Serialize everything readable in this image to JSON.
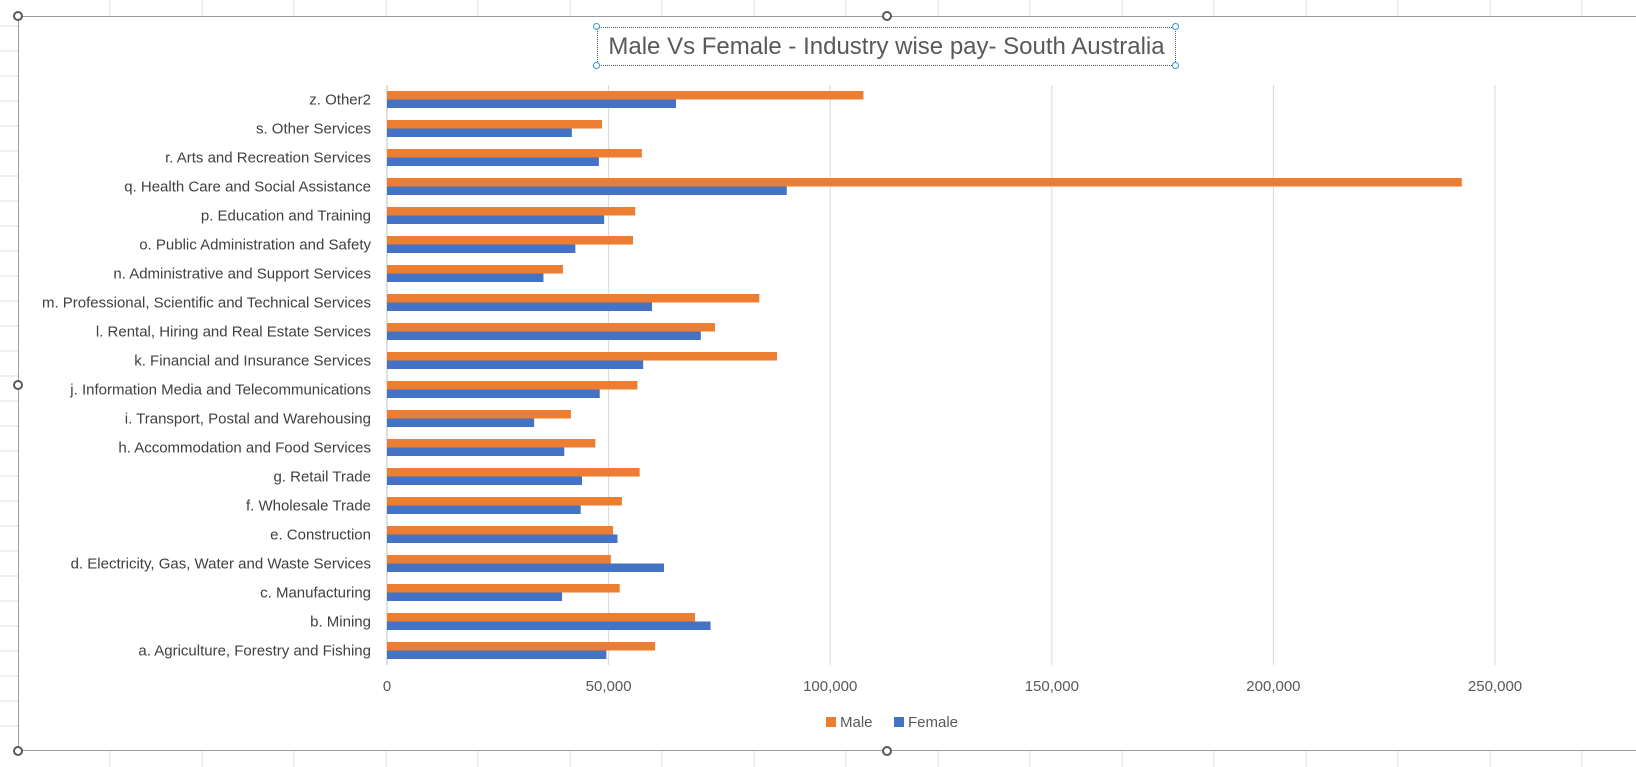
{
  "colors": {
    "male": "#ED7D31",
    "female": "#4472C4",
    "gridline": "#D9D9D9",
    "label": "#404040",
    "tick_label": "#595959"
  },
  "chart_data": {
    "type": "bar",
    "orientation": "horizontal",
    "title": "Male Vs Female - Industry wise pay-  South Australia",
    "xlabel": "",
    "ylabel": "",
    "categories": [
      "a. Agriculture, Forestry and Fishing",
      "b. Mining",
      "c. Manufacturing",
      "d. Electricity, Gas, Water and Waste Services",
      "e. Construction",
      "f. Wholesale Trade",
      "g. Retail Trade",
      "h. Accommodation and Food Services",
      "i. Transport, Postal and Warehousing",
      "j. Information Media and Telecommunications",
      "k. Financial and Insurance Services",
      "l. Rental, Hiring and Real Estate Services",
      "m. Professional, Scientific and Technical Services",
      "n. Administrative and Support Services",
      "o. Public Administration and Safety",
      "p. Education and Training",
      "q. Health Care and Social Assistance",
      "r. Arts and Recreation Services",
      "s. Other Services",
      "z. Other2"
    ],
    "series": [
      {
        "name": "Male",
        "color": "#ED7D31",
        "values": [
          60500,
          69500,
          52500,
          50500,
          51000,
          53000,
          57000,
          47000,
          41500,
          56500,
          88000,
          74000,
          84000,
          39700,
          55500,
          56000,
          242500,
          57500,
          48500,
          107500
        ]
      },
      {
        "name": "Female",
        "color": "#4472C4",
        "values": [
          49500,
          73000,
          39500,
          62500,
          52000,
          43700,
          44000,
          40000,
          33200,
          48000,
          57800,
          70800,
          59800,
          35300,
          42500,
          49000,
          90200,
          47800,
          41700,
          65200
        ]
      }
    ],
    "xlim": [
      0,
      280000
    ],
    "x_ticks": [
      "0",
      "50,000",
      "100,000",
      "150,000",
      "200,000",
      "250,000"
    ],
    "x_tick_values": [
      0,
      50000,
      100000,
      150000,
      200000,
      250000
    ],
    "grid": true,
    "legend_position": "bottom",
    "legend": [
      "Male",
      "Female"
    ]
  }
}
